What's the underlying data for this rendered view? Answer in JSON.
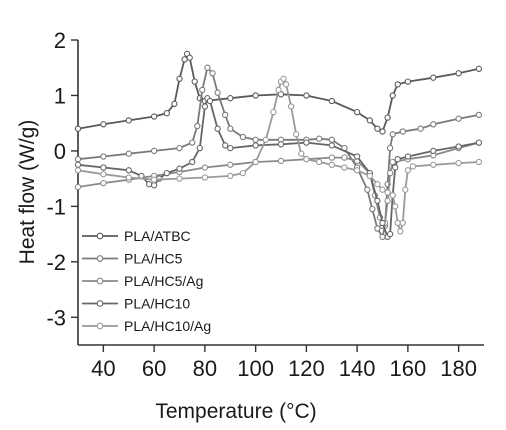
{
  "chart_data": {
    "type": "line",
    "xlabel": "Temperature (°C)",
    "ylabel": "Heat flow (W/g)",
    "xlim": [
      30,
      190
    ],
    "ylim": [
      -3.5,
      2.0
    ],
    "xticks": [
      "40",
      "60",
      "80",
      "100",
      "120",
      "140",
      "160",
      "180"
    ],
    "xtick_values": [
      40,
      60,
      80,
      100,
      120,
      140,
      160,
      180
    ],
    "yticks": [
      "2",
      "1",
      "0",
      "-1",
      "-2",
      "-3"
    ],
    "ytick_values": [
      2,
      1,
      0,
      -1,
      -2,
      -3
    ],
    "grid": false,
    "legend_position": "bottom-left",
    "series": [
      {
        "name": "PLA/ATBC",
        "color": "#5a5a5a",
        "points": [
          [
            30,
            0.4
          ],
          [
            40,
            0.48
          ],
          [
            50,
            0.55
          ],
          [
            60,
            0.62
          ],
          [
            65,
            0.68
          ],
          [
            68,
            0.85
          ],
          [
            70,
            1.3
          ],
          [
            72,
            1.65
          ],
          [
            73,
            1.75
          ],
          [
            74,
            1.68
          ],
          [
            76,
            1.25
          ],
          [
            78,
            0.95
          ],
          [
            80,
            0.9
          ],
          [
            90,
            0.95
          ],
          [
            100,
            1.0
          ],
          [
            110,
            1.02
          ],
          [
            120,
            1.0
          ],
          [
            130,
            0.9
          ],
          [
            140,
            0.7
          ],
          [
            145,
            0.55
          ],
          [
            148,
            0.4
          ],
          [
            150,
            0.35
          ],
          [
            152,
            0.6
          ],
          [
            154,
            1.0
          ],
          [
            156,
            1.2
          ],
          [
            160,
            1.25
          ],
          [
            170,
            1.32
          ],
          [
            180,
            1.4
          ],
          [
            188,
            1.48
          ]
        ]
      },
      {
        "name": "PLA/HC5",
        "color": "#7a7a7a",
        "points": [
          [
            30,
            -0.15
          ],
          [
            40,
            -0.1
          ],
          [
            50,
            -0.05
          ],
          [
            60,
            0.0
          ],
          [
            70,
            0.05
          ],
          [
            75,
            0.15
          ],
          [
            77,
            0.45
          ],
          [
            79,
            1.1
          ],
          [
            81,
            1.5
          ],
          [
            83,
            1.4
          ],
          [
            85,
            1.05
          ],
          [
            88,
            0.65
          ],
          [
            90,
            0.4
          ],
          [
            95,
            0.25
          ],
          [
            100,
            0.2
          ],
          [
            110,
            0.2
          ],
          [
            120,
            0.2
          ],
          [
            125,
            0.22
          ],
          [
            130,
            0.2
          ],
          [
            135,
            0.05
          ],
          [
            140,
            -0.3
          ],
          [
            144,
            -0.7
          ],
          [
            146,
            -1.05
          ],
          [
            148,
            -1.4
          ],
          [
            150,
            -1.55
          ],
          [
            151,
            -1.35
          ],
          [
            152,
            -0.6
          ],
          [
            153,
            0.05
          ],
          [
            154,
            0.3
          ],
          [
            158,
            0.35
          ],
          [
            165,
            0.4
          ],
          [
            170,
            0.48
          ],
          [
            180,
            0.58
          ],
          [
            188,
            0.65
          ]
        ]
      },
      {
        "name": "PLA/HC5/Ag",
        "color": "#8a8a8a",
        "points": [
          [
            30,
            -0.65
          ],
          [
            40,
            -0.58
          ],
          [
            50,
            -0.52
          ],
          [
            60,
            -0.45
          ],
          [
            70,
            -0.38
          ],
          [
            80,
            -0.3
          ],
          [
            90,
            -0.25
          ],
          [
            100,
            -0.2
          ],
          [
            110,
            -0.18
          ],
          [
            120,
            -0.15
          ],
          [
            130,
            -0.12
          ],
          [
            135,
            -0.12
          ],
          [
            140,
            -0.18
          ],
          [
            145,
            -0.4
          ],
          [
            147,
            -0.8
          ],
          [
            149,
            -1.2
          ],
          [
            150,
            -1.35
          ],
          [
            151,
            -1.3
          ],
          [
            152,
            -0.9
          ],
          [
            153,
            -0.4
          ],
          [
            154,
            -0.2
          ],
          [
            160,
            -0.15
          ],
          [
            170,
            -0.08
          ],
          [
            180,
            0.05
          ],
          [
            188,
            0.15
          ]
        ]
      },
      {
        "name": "PLA/HC10",
        "color": "#666666",
        "points": [
          [
            30,
            -0.25
          ],
          [
            40,
            -0.3
          ],
          [
            50,
            -0.35
          ],
          [
            55,
            -0.45
          ],
          [
            58,
            -0.6
          ],
          [
            60,
            -0.62
          ],
          [
            62,
            -0.5
          ],
          [
            65,
            -0.4
          ],
          [
            70,
            -0.32
          ],
          [
            75,
            -0.2
          ],
          [
            78,
            0.05
          ],
          [
            80,
            0.8
          ],
          [
            81,
            0.95
          ],
          [
            82,
            0.9
          ],
          [
            85,
            0.4
          ],
          [
            88,
            0.1
          ],
          [
            90,
            0.05
          ],
          [
            100,
            0.1
          ],
          [
            110,
            0.12
          ],
          [
            120,
            0.15
          ],
          [
            130,
            0.1
          ],
          [
            140,
            -0.1
          ],
          [
            145,
            -0.4
          ],
          [
            148,
            -0.9
          ],
          [
            150,
            -1.3
          ],
          [
            152,
            -1.55
          ],
          [
            153,
            -1.5
          ],
          [
            154,
            -0.8
          ],
          [
            155,
            -0.3
          ],
          [
            156,
            -0.15
          ],
          [
            160,
            -0.1
          ],
          [
            170,
            0.0
          ],
          [
            180,
            0.08
          ],
          [
            188,
            0.15
          ]
        ]
      },
      {
        "name": "PLA/HC10/Ag",
        "color": "#9a9a9a",
        "points": [
          [
            30,
            -0.35
          ],
          [
            40,
            -0.42
          ],
          [
            50,
            -0.48
          ],
          [
            60,
            -0.52
          ],
          [
            70,
            -0.5
          ],
          [
            80,
            -0.48
          ],
          [
            90,
            -0.45
          ],
          [
            95,
            -0.4
          ],
          [
            100,
            -0.2
          ],
          [
            104,
            0.2
          ],
          [
            107,
            0.7
          ],
          [
            109,
            1.1
          ],
          [
            110,
            1.25
          ],
          [
            111,
            1.3
          ],
          [
            112,
            1.2
          ],
          [
            114,
            0.8
          ],
          [
            116,
            0.3
          ],
          [
            118,
            -0.05
          ],
          [
            120,
            -0.15
          ],
          [
            125,
            -0.2
          ],
          [
            130,
            -0.25
          ],
          [
            135,
            -0.3
          ],
          [
            140,
            -0.35
          ],
          [
            145,
            -0.45
          ],
          [
            148,
            -0.6
          ],
          [
            150,
            -0.7
          ],
          [
            152,
            -0.75
          ],
          [
            154,
            -0.8
          ],
          [
            155,
            -1.0
          ],
          [
            156,
            -1.3
          ],
          [
            157,
            -1.45
          ],
          [
            158,
            -1.3
          ],
          [
            159,
            -0.7
          ],
          [
            160,
            -0.35
          ],
          [
            162,
            -0.28
          ],
          [
            170,
            -0.25
          ],
          [
            180,
            -0.22
          ],
          [
            188,
            -0.2
          ]
        ]
      }
    ]
  }
}
